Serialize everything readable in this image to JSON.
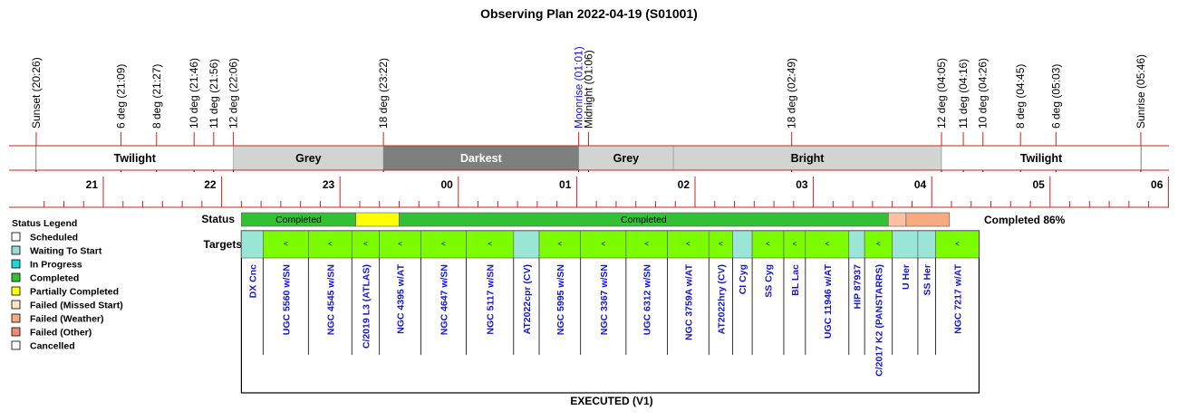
{
  "title": "Observing Plan 2022-04-19 (S01001)",
  "events": [
    {
      "label": "Sunset (20:26)",
      "hour": 20.433,
      "color": "#000000"
    },
    {
      "label": "6 deg (21:09)",
      "hour": 21.15,
      "color": "#000000"
    },
    {
      "label": "8 deg (21:27)",
      "hour": 21.45,
      "color": "#000000"
    },
    {
      "label": "10 deg (21:46)",
      "hour": 21.767,
      "color": "#000000"
    },
    {
      "label": "11 deg (21:56)",
      "hour": 21.933,
      "color": "#000000"
    },
    {
      "label": "12 deg (22:06)",
      "hour": 22.1,
      "color": "#000000"
    },
    {
      "label": "18 deg (23:22)",
      "hour": 23.367,
      "color": "#000000"
    },
    {
      "label": "Moonrise (01:01)",
      "hour": 25.017,
      "color": "#1515c8"
    },
    {
      "label": "Midnight (01:06)",
      "hour": 25.1,
      "color": "#000000"
    },
    {
      "label": "18 deg (02:49)",
      "hour": 26.817,
      "color": "#000000"
    },
    {
      "label": "12 deg (04:05)",
      "hour": 28.083,
      "color": "#000000"
    },
    {
      "label": "11 deg (04:16)",
      "hour": 28.267,
      "color": "#000000"
    },
    {
      "label": "10 deg (04:26)",
      "hour": 28.433,
      "color": "#000000"
    },
    {
      "label": "8 deg (04:45)",
      "hour": 28.75,
      "color": "#000000"
    },
    {
      "label": "6 deg (05:03)",
      "hour": 29.05,
      "color": "#000000"
    },
    {
      "label": "Sunrise (05:46)",
      "hour": 29.767,
      "color": "#000000"
    }
  ],
  "sky_bands": [
    {
      "label": "Twilight",
      "start": 20.433,
      "end": 22.1,
      "fill": "#ffffff",
      "text": "#000000"
    },
    {
      "label": "Grey",
      "start": 22.1,
      "end": 23.367,
      "fill": "#d3d3d3",
      "text": "#000000"
    },
    {
      "label": "Darkest",
      "start": 23.367,
      "end": 25.017,
      "fill": "#7f7f7f",
      "text": "#ffffff"
    },
    {
      "label": "Grey",
      "start": 25.017,
      "end": 25.817,
      "fill": "#d3d3d3",
      "text": "#000000"
    },
    {
      "label": "Bright",
      "start": 25.817,
      "end": 28.083,
      "fill": "#d3d3d3",
      "text": "#000000"
    },
    {
      "label": "Twilight",
      "start": 28.083,
      "end": 29.767,
      "fill": "#ffffff",
      "text": "#000000"
    }
  ],
  "hour_ticks": [
    {
      "hour": 21,
      "label": "21"
    },
    {
      "hour": 22,
      "label": "22"
    },
    {
      "hour": 23,
      "label": "23"
    },
    {
      "hour": 24,
      "label": "00"
    },
    {
      "hour": 25,
      "label": "01"
    },
    {
      "hour": 26,
      "label": "02"
    },
    {
      "hour": 27,
      "label": "03"
    },
    {
      "hour": 28,
      "label": "04"
    },
    {
      "hour": 29,
      "label": "05"
    },
    {
      "hour": 30,
      "label": "06"
    }
  ],
  "legend": {
    "title": "Status Legend",
    "items": [
      {
        "label": "Scheduled",
        "color": "#ffffff"
      },
      {
        "label": "Waiting To Start",
        "color": "#9ad9d6"
      },
      {
        "label": "In Progress",
        "color": "#19d7d7"
      },
      {
        "label": "Completed",
        "color": "#34c034"
      },
      {
        "label": "Partially Completed",
        "color": "#ffff00"
      },
      {
        "label": "Failed (Missed Start)",
        "color": "#fde4c2"
      },
      {
        "label": "Failed (Weather)",
        "color": "#f7a980"
      },
      {
        "label": "Failed (Other)",
        "color": "#f18b78"
      },
      {
        "label": "Cancelled",
        "color": "#ffffff"
      }
    ]
  },
  "status_row": {
    "label": "Status",
    "summary": "Completed 86%",
    "segments": [
      {
        "start": 22.167,
        "end": 23.133,
        "label": "Completed",
        "color": "#34c034"
      },
      {
        "start": 23.133,
        "end": 23.5,
        "label": "",
        "color": "#ffff00"
      },
      {
        "start": 23.5,
        "end": 27.633,
        "label": "Completed",
        "color": "#34c034"
      },
      {
        "start": 27.633,
        "end": 27.783,
        "label": "",
        "color": "#fbc2a2"
      },
      {
        "start": 27.783,
        "end": 28.15,
        "label": "",
        "color": "#f7a980"
      }
    ]
  },
  "targets_row": {
    "label": "Targets",
    "footer": "EXECUTED (V1)",
    "items": [
      {
        "name": "DX Cnc",
        "start": 22.167,
        "end": 22.35,
        "color": "#9ae6d6",
        "mark": ""
      },
      {
        "name": "UGC 5560 w/SN",
        "start": 22.35,
        "end": 22.733,
        "color": "#7cfc00",
        "mark": "<"
      },
      {
        "name": "NGC 4545 w/SN",
        "start": 22.733,
        "end": 23.1,
        "color": "#7cfc00",
        "mark": "<"
      },
      {
        "name": "C/2019 L3 (ATLAS)",
        "start": 23.1,
        "end": 23.333,
        "color": "#7cfc00",
        "mark": "<"
      },
      {
        "name": "NGC 4395 w/AT",
        "start": 23.333,
        "end": 23.683,
        "color": "#7cfc00",
        "mark": "<"
      },
      {
        "name": "NGC 4647 w/SN",
        "start": 23.683,
        "end": 24.067,
        "color": "#7cfc00",
        "mark": "<"
      },
      {
        "name": "NGC 5117 w/SN",
        "start": 24.067,
        "end": 24.467,
        "color": "#7cfc00",
        "mark": "<"
      },
      {
        "name": "AT2022cpr (CV)",
        "start": 24.467,
        "end": 24.683,
        "color": "#9ae6d6",
        "mark": ""
      },
      {
        "name": "NGC 5995 w/SN",
        "start": 24.683,
        "end": 25.033,
        "color": "#7cfc00",
        "mark": "<"
      },
      {
        "name": "NGC 3367 w/SN",
        "start": 25.033,
        "end": 25.417,
        "color": "#7cfc00",
        "mark": "<"
      },
      {
        "name": "UGC 6312 w/SN",
        "start": 25.417,
        "end": 25.767,
        "color": "#7cfc00",
        "mark": "<"
      },
      {
        "name": "NGC 3759A w/AT",
        "start": 25.767,
        "end": 26.117,
        "color": "#7cfc00",
        "mark": "<"
      },
      {
        "name": "AT2022hry (CV)",
        "start": 26.117,
        "end": 26.317,
        "color": "#7cfc00",
        "mark": "<"
      },
      {
        "name": "CI Cyg",
        "start": 26.317,
        "end": 26.483,
        "color": "#9ae6d6",
        "mark": ""
      },
      {
        "name": "SS Cyg",
        "start": 26.483,
        "end": 26.75,
        "color": "#7cfc00",
        "mark": "<"
      },
      {
        "name": "BL Lac",
        "start": 26.75,
        "end": 26.933,
        "color": "#7cfc00",
        "mark": "<"
      },
      {
        "name": "UGC 11946 w/AT",
        "start": 26.933,
        "end": 27.3,
        "color": "#7cfc00",
        "mark": "<"
      },
      {
        "name": "HIP 87937",
        "start": 27.3,
        "end": 27.433,
        "color": "#9ae6d6",
        "mark": ""
      },
      {
        "name": "C/2017 K2 (PANSTARRS)",
        "start": 27.433,
        "end": 27.667,
        "color": "#7cfc00",
        "mark": "<"
      },
      {
        "name": "U Her",
        "start": 27.667,
        "end": 27.883,
        "color": "#9ae6d6",
        "mark": ""
      },
      {
        "name": "SS Her",
        "start": 27.883,
        "end": 28.033,
        "color": "#9ae6d6",
        "mark": ""
      },
      {
        "name": "NGC 7217 w/AT",
        "start": 28.033,
        "end": 28.4,
        "color": "#7cfc00",
        "mark": "<"
      }
    ]
  }
}
